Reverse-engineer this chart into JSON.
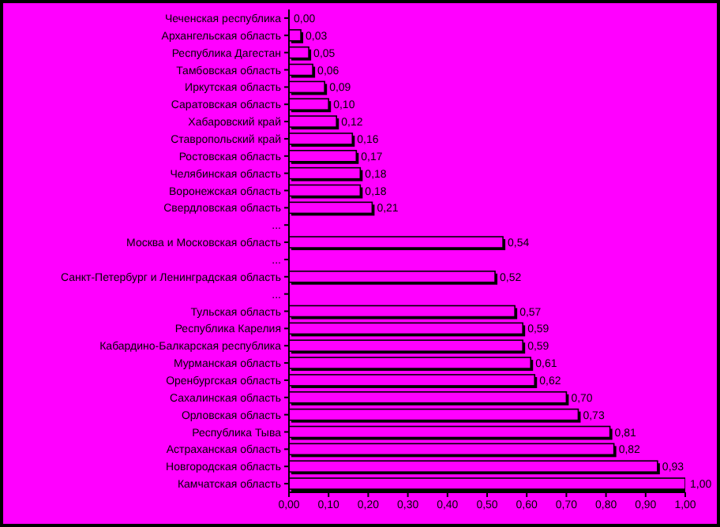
{
  "chart_data": {
    "type": "bar",
    "orientation": "horizontal",
    "categories": [
      "Чеченская республика",
      "Архангельская область",
      "Республика Дагестан",
      "Тамбовская область",
      "Иркутская область",
      "Саратовская область",
      "Хабаровский край",
      "Ставропольский край",
      "Ростовская область",
      "Челябинская область",
      "Воронежская область",
      "Свердловская область",
      "...",
      "Москва и Московская область",
      "...",
      "Санкт-Петербург и Ленинградская область",
      "...",
      "Тульская область",
      "Республика Карелия",
      "Кабардино-Балкарская республика",
      "Мурманская область",
      "Оренбургская область",
      "Сахалинская область",
      "Орловская область",
      "Республика Тыва",
      "Астраханская область",
      "Новгородская область",
      "Камчатская область"
    ],
    "values": [
      0.0,
      0.03,
      0.05,
      0.06,
      0.09,
      0.1,
      0.12,
      0.16,
      0.17,
      0.18,
      0.18,
      0.21,
      null,
      0.54,
      null,
      0.52,
      null,
      0.57,
      0.59,
      0.59,
      0.61,
      0.62,
      0.7,
      0.73,
      0.81,
      0.82,
      0.93,
      1.0
    ],
    "value_labels": [
      "0,00",
      "0,03",
      "0,05",
      "0,06",
      "0,09",
      "0,10",
      "0,12",
      "0,16",
      "0,17",
      "0,18",
      "0,18",
      "0,21",
      null,
      "0,54",
      null,
      "0,52",
      null,
      "0,57",
      "0,59",
      "0,59",
      "0,61",
      "0,62",
      "0,70",
      "0,73",
      "0,81",
      "0,82",
      "0,93",
      "1,00"
    ],
    "color": "#ff00ff",
    "xlim": [
      0,
      1
    ],
    "xticks": [
      {
        "value": 0,
        "label": "0,00"
      },
      {
        "value": 0.1,
        "label": "0,10"
      },
      {
        "value": 0.2,
        "label": "0,20"
      },
      {
        "value": 0.3,
        "label": "0,30"
      },
      {
        "value": 0.4,
        "label": "0,40"
      },
      {
        "value": 0.5,
        "label": "0,50"
      },
      {
        "value": 0.6,
        "label": "0,60"
      },
      {
        "value": 0.7,
        "label": "0,70"
      },
      {
        "value": 0.8,
        "label": "0,80"
      },
      {
        "value": 0.9,
        "label": "0,90"
      },
      {
        "value": 1,
        "label": "1,00"
      }
    ],
    "grid": false,
    "legend": false
  }
}
